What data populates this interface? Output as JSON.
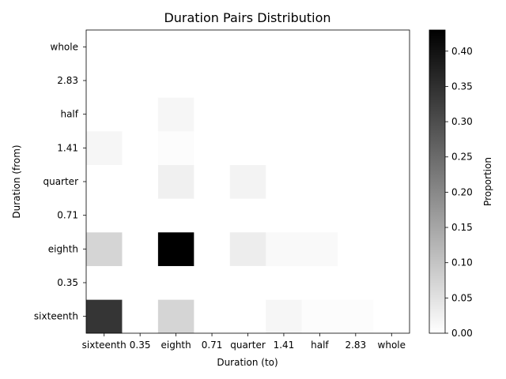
{
  "chart_data": {
    "type": "heatmap",
    "title": "Duration Pairs Distribution",
    "xlabel": "Duration (to)",
    "ylabel": "Duration (from)",
    "x_categories": [
      "sixteenth",
      "0.35",
      "eighth",
      "0.71",
      "quarter",
      "1.41",
      "half",
      "2.83",
      "whole"
    ],
    "y_categories": [
      "sixteenth",
      "0.35",
      "eighth",
      "0.71",
      "quarter",
      "1.41",
      "half",
      "2.83",
      "whole"
    ],
    "values": [
      [
        0.34,
        0,
        0.07,
        0,
        0,
        0.015,
        0.005,
        0.005,
        0
      ],
      [
        0,
        0,
        0,
        0,
        0,
        0,
        0,
        0,
        0
      ],
      [
        0.07,
        0,
        0.43,
        0,
        0.03,
        0.01,
        0.01,
        0,
        0
      ],
      [
        0,
        0,
        0,
        0,
        0,
        0,
        0,
        0,
        0
      ],
      [
        0,
        0,
        0.025,
        0,
        0.02,
        0,
        0,
        0,
        0
      ],
      [
        0.015,
        0,
        0.005,
        0,
        0,
        0,
        0,
        0,
        0
      ],
      [
        0,
        0,
        0.015,
        0,
        0,
        0,
        0,
        0,
        0
      ],
      [
        0,
        0,
        0,
        0,
        0,
        0,
        0,
        0,
        0
      ],
      [
        0,
        0,
        0,
        0,
        0,
        0,
        0,
        0,
        0
      ]
    ],
    "colorbar": {
      "label": "Proportion",
      "range": [
        0,
        0.43
      ],
      "ticks": [
        "0.00",
        "0.05",
        "0.10",
        "0.15",
        "0.20",
        "0.25",
        "0.30",
        "0.35",
        "0.40"
      ],
      "colormap": "Greys"
    }
  }
}
